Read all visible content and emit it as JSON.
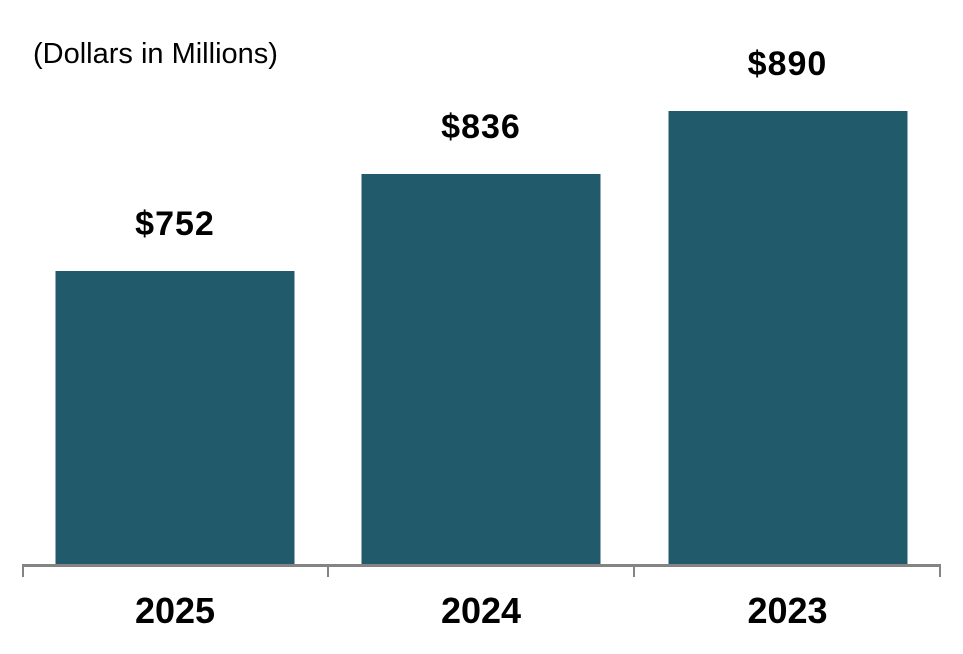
{
  "chart_data": {
    "type": "bar",
    "title": "(Dollars in Millions)",
    "categories": [
      "2025",
      "2024",
      "2023"
    ],
    "values": [
      752,
      836,
      890
    ],
    "value_labels": [
      "$752",
      "$836",
      "$890"
    ],
    "ylim": [
      500,
      890
    ],
    "grid": false,
    "legend": false,
    "axis_tick_labels_visible": false,
    "bar_color": "#215A6B",
    "axis_color": "#848484",
    "text_color": "#000000"
  }
}
